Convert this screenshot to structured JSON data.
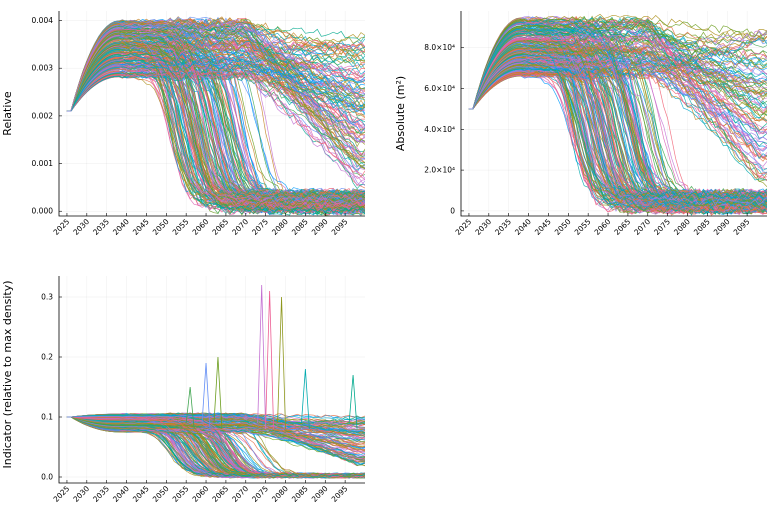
{
  "chart_data": [
    {
      "type": "line",
      "ylabel": "Relative",
      "xlabel": "",
      "xlim": [
        2023,
        2100
      ],
      "ylim": [
        -0.0001,
        0.0042
      ],
      "xticks": [
        2025,
        2030,
        2035,
        2040,
        2045,
        2050,
        2055,
        2060,
        2065,
        2070,
        2075,
        2080,
        2085,
        2090,
        2095
      ],
      "xtick_labels": [
        "2025",
        "2030",
        "2035",
        "2040",
        "2045",
        "2050",
        "2055",
        "2060",
        "2065",
        "2070",
        "2075",
        "2080",
        "2085",
        "2090",
        "2095"
      ],
      "yticks": [
        0,
        0.001,
        0.002,
        0.003,
        0.004
      ],
      "ytick_labels": [
        "0.000",
        "0.001",
        "0.002",
        "0.003",
        "0.004"
      ],
      "grid": true,
      "legend": "none",
      "series_count": 300,
      "x_start": 2025,
      "x_end": 2100,
      "start_value": 0.0021,
      "plateau_range": [
        0.0028,
        0.004
      ],
      "collapse_year_range": [
        2050,
        2068
      ],
      "collapse_end_range": [
        0.0,
        0.0004
      ],
      "persistent_range": [
        0.0005,
        0.0037
      ]
    },
    {
      "type": "line",
      "ylabel": "Absolute (m²)",
      "xlabel": "",
      "xlim": [
        2023,
        2100
      ],
      "ylim": [
        -2500,
        98000
      ],
      "xticks": [
        2025,
        2030,
        2035,
        2040,
        2045,
        2050,
        2055,
        2060,
        2065,
        2070,
        2075,
        2080,
        2085,
        2090,
        2095
      ],
      "xtick_labels": [
        "2025",
        "2030",
        "2035",
        "2040",
        "2045",
        "2050",
        "2055",
        "2060",
        "2065",
        "2070",
        "2075",
        "2080",
        "2085",
        "2090",
        "2095"
      ],
      "yticks": [
        0,
        20000,
        40000,
        60000,
        80000
      ],
      "ytick_labels": [
        "0",
        "2.0×10⁴",
        "4.0×10⁴",
        "6.0×10⁴",
        "8.0×10⁴"
      ],
      "grid": true,
      "legend": "none",
      "series_count": 300,
      "x_start": 2025,
      "x_end": 2100,
      "start_value": 50000,
      "plateau_range": [
        66000,
        95000
      ],
      "collapse_year_range": [
        2050,
        2068
      ],
      "collapse_end_range": [
        0,
        9000
      ],
      "persistent_range": [
        12000,
        88000
      ]
    },
    {
      "type": "line",
      "ylabel": "Indicator (relative to max density)",
      "xlabel": "",
      "xlim": [
        2023,
        2100
      ],
      "ylim": [
        -0.01,
        0.335
      ],
      "xticks": [
        2025,
        2030,
        2035,
        2040,
        2045,
        2050,
        2055,
        2060,
        2065,
        2070,
        2075,
        2080,
        2085,
        2090,
        2095
      ],
      "xtick_labels": [
        "2025",
        "2030",
        "2035",
        "2040",
        "2045",
        "2050",
        "2055",
        "2060",
        "2065",
        "2070",
        "2075",
        "2080",
        "2085",
        "2090",
        "2095"
      ],
      "yticks": [
        0,
        0.1,
        0.2,
        0.3
      ],
      "ytick_labels": [
        "0.0",
        "0.1",
        "0.2",
        "0.3"
      ],
      "grid": true,
      "legend": "none",
      "series_count": 300,
      "x_start": 2025,
      "x_end": 2100,
      "start_value": 0.1,
      "plateau_range": [
        0.075,
        0.105
      ],
      "collapse_year_range": [
        2050,
        2068
      ],
      "collapse_end_range": [
        0.0,
        0.005
      ],
      "persistent_range": [
        0.02,
        0.1
      ],
      "spikes": [
        {
          "x": 2074,
          "y": 0.32
        },
        {
          "x": 2076,
          "y": 0.31
        },
        {
          "x": 2079,
          "y": 0.3
        },
        {
          "x": 2060,
          "y": 0.19
        },
        {
          "x": 2063,
          "y": 0.2
        },
        {
          "x": 2056,
          "y": 0.15
        },
        {
          "x": 2085,
          "y": 0.18
        },
        {
          "x": 2097,
          "y": 0.17
        }
      ]
    }
  ],
  "palette": [
    "#009AFA",
    "#E36F47",
    "#3EA44E",
    "#C371D2",
    "#AC8E18",
    "#00AAAE",
    "#ED5E93",
    "#C68225",
    "#00A98D",
    "#8E971D",
    "#00A9CD",
    "#9B7FE9",
    "#618DF6",
    "#F16073",
    "#DD64B5",
    "#6B9D1D"
  ]
}
